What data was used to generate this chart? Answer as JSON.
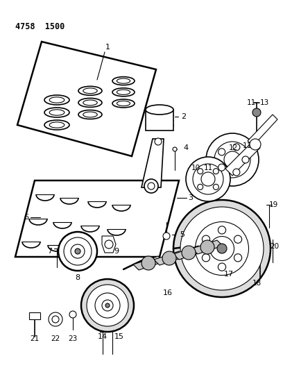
{
  "title": "4758  1500",
  "bg_color": "#ffffff",
  "line_color": "#000000",
  "fig_width": 4.08,
  "fig_height": 5.33,
  "dpi": 100
}
